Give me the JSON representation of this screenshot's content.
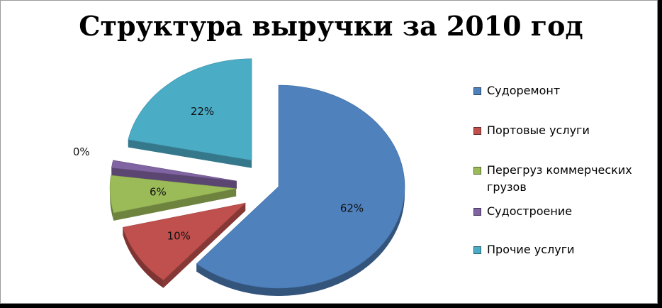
{
  "chart_data": {
    "type": "pie",
    "title": "Структура выручки за 2010 год",
    "categories": [
      "Судоремонт",
      "Портовые услуги",
      "Перегруз коммерческих грузов",
      "Судостроение",
      "Прочие услуги"
    ],
    "values": [
      62,
      10,
      6,
      0,
      22
    ],
    "value_labels": [
      "62%",
      "10%",
      "6%",
      "0%",
      "22%"
    ],
    "colors": [
      "#4f81bd",
      "#c0504d",
      "#9bbb59",
      "#8064a2",
      "#4bacc6"
    ],
    "exploded": true,
    "three_d": true,
    "legend_position": "right"
  }
}
